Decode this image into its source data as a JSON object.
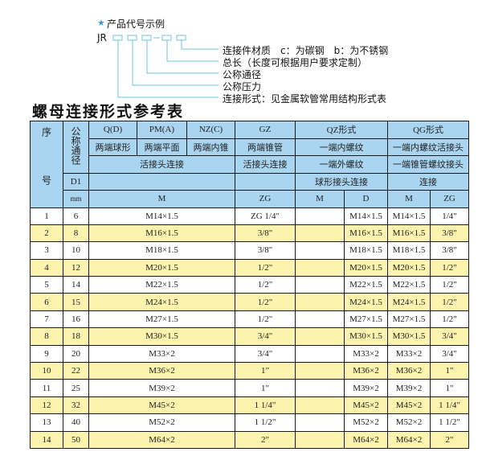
{
  "example": {
    "heading": "产品代号示例",
    "code_prefix": "JR",
    "separator": "-",
    "labels": [
      "连接件材质　c：为碳钢　b：为不锈钢",
      "总长（长度可根据用户要求定制）",
      "公称通径",
      "公称压力",
      "连接形式：见金属软管常用结构形式表"
    ],
    "accent_color": "#3aa0d8"
  },
  "table_title": "螺母连接形式参考表",
  "header": {
    "seq": "序　号",
    "nominal": "公称通径",
    "row1": [
      "Q(D)",
      "PM(A)",
      "NZ(C)",
      "GZ",
      "QZ形式",
      "QG形式"
    ],
    "row2": [
      "两端球形",
      "两端平面",
      "两端内锥",
      "两端锥管",
      "一端内螺纹",
      "一端内螺纹活接头"
    ],
    "row3": [
      "活接头连接",
      "活接头连接",
      "一端外螺纹",
      "一端锥管螺纹接头"
    ],
    "row4": [
      "D1",
      "",
      "",
      "球形接头连接",
      "连接"
    ],
    "row5": [
      "mm",
      "M",
      "ZG",
      "M",
      "D",
      "M",
      "ZG"
    ]
  },
  "rows": [
    [
      "1",
      "6",
      "M14×1.5",
      "ZG 1/4\"",
      "",
      "M14×1.5",
      "M14×1.5",
      "1/4\""
    ],
    [
      "2",
      "8",
      "M16×1.5",
      "3/8\"",
      "",
      "M16×1.5",
      "M16×1.5",
      "3/8\""
    ],
    [
      "3",
      "10",
      "M18×1.5",
      "3/8\"",
      "",
      "M18×1.5",
      "M18×1.5",
      "3/8\""
    ],
    [
      "4",
      "12",
      "M20×1.5",
      "1/2\"",
      "",
      "M20×1.5",
      "M20×1.5",
      "1/2\""
    ],
    [
      "5",
      "14",
      "M22×1.5",
      "1/2\"",
      "",
      "M22×1.5",
      "M22×1.5",
      "1/2\""
    ],
    [
      "6",
      "15",
      "M24×1.5",
      "1/2\"",
      "",
      "M24×1.5",
      "M24×1.5",
      "1/2\""
    ],
    [
      "7",
      "16",
      "M27×1.5",
      "1/2\"",
      "",
      "M27×1.5",
      "M27×1.5",
      "1/2\""
    ],
    [
      "8",
      "18",
      "M30×1.5",
      "3/4\"",
      "",
      "M30×1.5",
      "M30×1.5",
      "3/4\""
    ],
    [
      "9",
      "20",
      "M33×2",
      "3/4\"",
      "",
      "M33×2",
      "M33×2",
      "3/4\""
    ],
    [
      "10",
      "22",
      "M36×2",
      "1\"",
      "",
      "M36×2",
      "M36×2",
      "1\""
    ],
    [
      "11",
      "25",
      "M39×2",
      "1\"",
      "",
      "M39×2",
      "M39×2",
      "1\""
    ],
    [
      "12",
      "32",
      "M45×2",
      "1 1/4\"",
      "",
      "M45×2",
      "M45×2",
      "1 1/4\""
    ],
    [
      "13",
      "40",
      "M52×2",
      "1 1/2\"",
      "",
      "M52×2",
      "M52×2",
      "1 1/2\""
    ],
    [
      "14",
      "50",
      "M64×2",
      "2\"",
      "",
      "M64×2",
      "M64×2",
      "2\""
    ]
  ],
  "colors": {
    "header_bg": "#a9d5f0",
    "stripe_bg": "#fbf3ae",
    "line_color": "#6fc3d8"
  }
}
